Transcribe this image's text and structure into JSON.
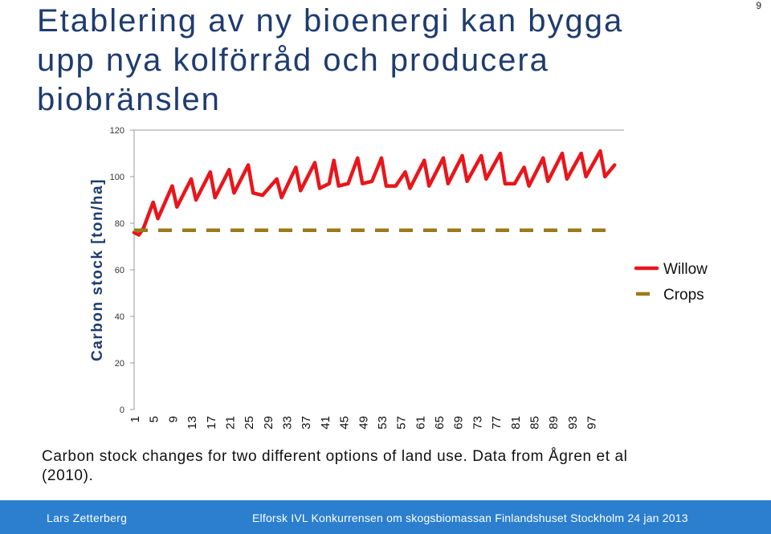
{
  "page_number": "9",
  "title": "Etablering av ny bioenergi kan bygga upp nya kolförråd och producera biobränslen",
  "caption": "Carbon stock changes for two different options of land use. Data from Ågren et al (2010).",
  "footer": {
    "author": "Lars Zetterberg",
    "event": "Elforsk IVL  Konkurrensen om skogsbiomassan Finlandshuset Stockholm 24 jan 2013"
  },
  "chart_data": {
    "type": "line",
    "title": "",
    "xlabel": "",
    "ylabel": "Carbon stock [ton/ha]",
    "xlim": [
      1,
      100
    ],
    "ylim": [
      0,
      120
    ],
    "y_ticks": [
      0,
      20,
      40,
      60,
      80,
      100,
      120
    ],
    "x_ticks": [
      1,
      5,
      9,
      13,
      17,
      21,
      25,
      29,
      33,
      37,
      41,
      45,
      49,
      53,
      57,
      61,
      65,
      69,
      73,
      77,
      81,
      85,
      89,
      93,
      97
    ],
    "grid": false,
    "legend_position": "right",
    "series": [
      {
        "name": "Willow",
        "color": "#e8161c",
        "style": "solid",
        "points": [
          [
            1,
            76
          ],
          [
            2,
            75
          ],
          [
            3,
            78
          ],
          [
            5,
            89
          ],
          [
            6,
            82
          ],
          [
            9,
            96
          ],
          [
            10,
            87
          ],
          [
            13,
            99
          ],
          [
            14,
            90
          ],
          [
            17,
            102
          ],
          [
            18,
            91
          ],
          [
            21,
            103
          ],
          [
            22,
            93
          ],
          [
            25,
            105
          ],
          [
            26,
            93
          ],
          [
            28,
            92
          ],
          [
            31,
            99
          ],
          [
            32,
            91
          ],
          [
            35,
            104
          ],
          [
            36,
            94
          ],
          [
            39,
            106
          ],
          [
            40,
            95
          ],
          [
            42,
            97
          ],
          [
            43,
            107
          ],
          [
            44,
            96
          ],
          [
            46,
            97
          ],
          [
            48,
            108
          ],
          [
            49,
            97
          ],
          [
            51,
            98
          ],
          [
            53,
            108
          ],
          [
            54,
            96
          ],
          [
            56,
            96
          ],
          [
            58,
            102
          ],
          [
            59,
            95
          ],
          [
            62,
            107
          ],
          [
            63,
            96
          ],
          [
            66,
            108
          ],
          [
            67,
            97
          ],
          [
            70,
            109
          ],
          [
            71,
            98
          ],
          [
            74,
            109
          ],
          [
            75,
            99
          ],
          [
            78,
            110
          ],
          [
            79,
            97
          ],
          [
            81,
            97
          ],
          [
            83,
            104
          ],
          [
            84,
            96
          ],
          [
            87,
            108
          ],
          [
            88,
            98
          ],
          [
            91,
            110
          ],
          [
            92,
            99
          ],
          [
            95,
            110
          ],
          [
            96,
            100
          ],
          [
            99,
            111
          ],
          [
            100,
            100
          ],
          [
            102,
            105
          ]
        ]
      },
      {
        "name": "Crops",
        "color": "#9a7a1a",
        "style": "dashed",
        "points": [
          [
            1,
            77
          ],
          [
            102,
            77
          ]
        ]
      }
    ]
  }
}
